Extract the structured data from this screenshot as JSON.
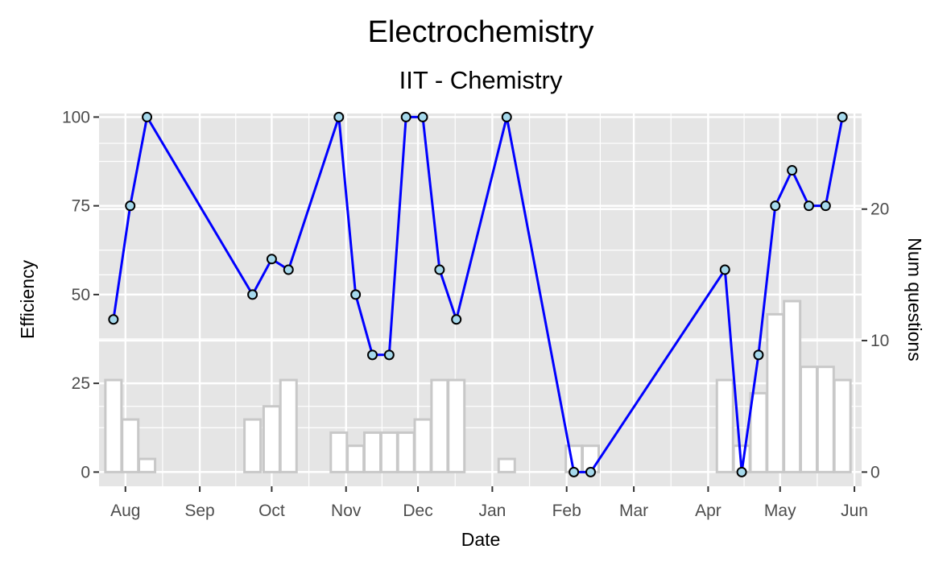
{
  "chart_data": {
    "type": "line",
    "title": "Electrochemistry",
    "subtitle": "IIT - Chemistry",
    "xlabel": "Date",
    "ylabel": "Efficiency",
    "y2label": "Num questions",
    "x_ticks": [
      "Aug",
      "Sep",
      "Oct",
      "Nov",
      "Dec",
      "Jan",
      "Feb",
      "Mar",
      "Apr",
      "May",
      "Jun"
    ],
    "y_ticks": [
      "0",
      "25",
      "50",
      "75",
      "100"
    ],
    "y2_ticks": [
      "0",
      "10",
      "20"
    ],
    "ylim": [
      -4,
      101
    ],
    "y2lim": [
      0,
      27
    ],
    "colors": {
      "line": "#0000ff",
      "point_fill": "#a6d9ec",
      "bar_stroke": "#c8c8c8",
      "panel": "#e5e5e5"
    },
    "line_series": {
      "x": [
        "Jul 27",
        "Aug 3",
        "Aug 10",
        "Sep 23",
        "Oct 1",
        "Oct 8",
        "Oct 29",
        "Nov 5",
        "Nov 12",
        "Nov 19",
        "Nov 26",
        "Dec 3",
        "Dec 10",
        "Dec 17",
        "Jan 7",
        "Feb 4",
        "Feb 11",
        "Apr 8",
        "Apr 15",
        "Apr 22",
        "Apr 29",
        "May 6",
        "May 13",
        "May 20",
        "May 27"
      ],
      "values": [
        43,
        75,
        100,
        50,
        60,
        57,
        100,
        50,
        33,
        33,
        100,
        100,
        57,
        43,
        100,
        0,
        0,
        57,
        0,
        33,
        75,
        85,
        75,
        75,
        100
      ]
    },
    "bar_series": {
      "name": "Num questions",
      "x": [
        "Jul 27",
        "Aug 3",
        "Aug 10",
        "Sep 23",
        "Oct 1",
        "Oct 8",
        "Oct 29",
        "Nov 5",
        "Nov 12",
        "Nov 19",
        "Nov 26",
        "Dec 3",
        "Dec 10",
        "Dec 17",
        "Jan 7",
        "Feb 4",
        "Feb 11",
        "Apr 8",
        "Apr 15",
        "Apr 22",
        "Apr 29",
        "May 6",
        "May 13",
        "May 20",
        "May 27"
      ],
      "values": [
        7,
        4,
        1,
        4,
        5,
        7,
        3,
        2,
        3,
        3,
        3,
        4,
        7,
        7,
        1,
        2,
        2,
        7,
        2,
        6,
        12,
        13,
        8,
        8,
        7
      ]
    }
  }
}
